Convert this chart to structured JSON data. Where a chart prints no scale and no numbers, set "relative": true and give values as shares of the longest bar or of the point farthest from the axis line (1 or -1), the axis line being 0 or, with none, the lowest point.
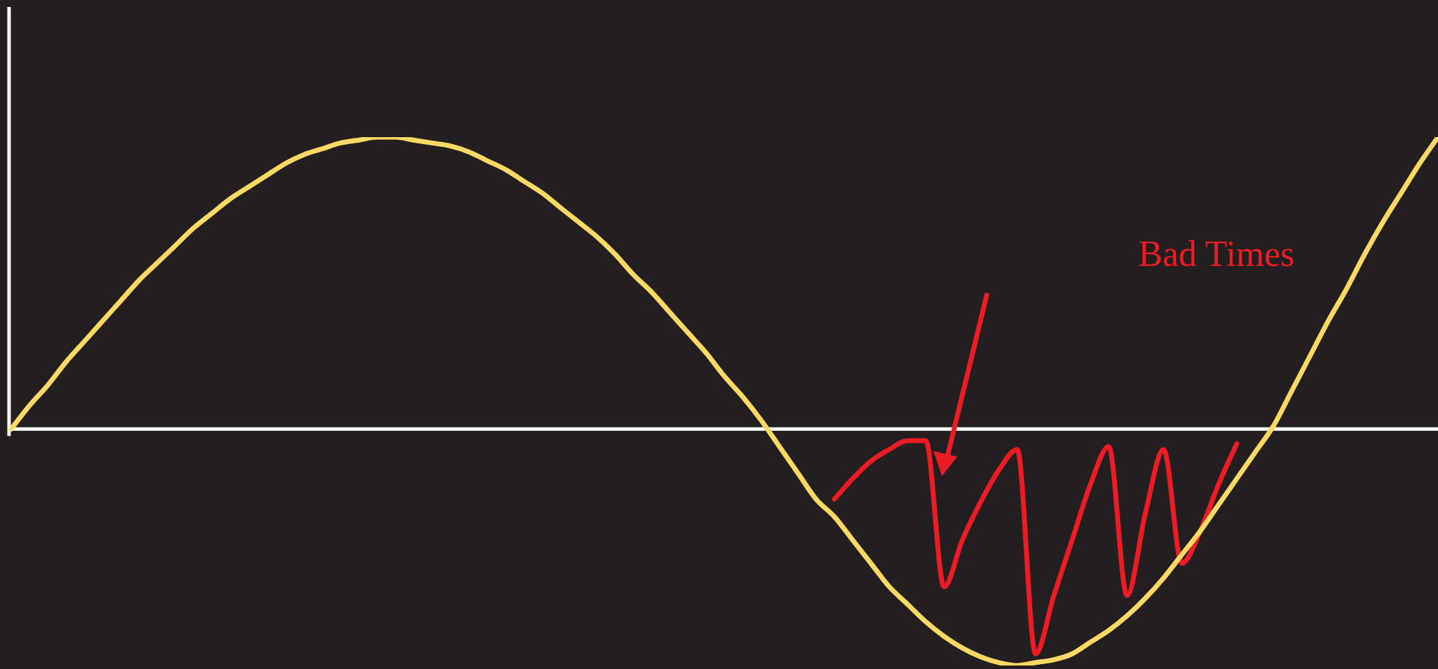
{
  "chart_data": {
    "type": "line",
    "relative": true,
    "legend": false,
    "marker": "none",
    "line_style": "solid",
    "annotations": [
      "Bad Times"
    ],
    "categories": [
      null,
      null,
      null,
      null,
      null,
      null,
      null,
      null,
      null,
      null,
      null,
      null,
      null,
      null,
      null,
      null,
      null,
      null,
      null,
      null,
      null,
      null,
      null,
      null,
      null,
      null,
      null,
      null,
      null,
      null,
      null,
      null,
      null,
      null,
      null,
      null,
      null,
      null,
      null,
      null,
      null,
      null,
      null,
      null,
      null,
      null,
      null,
      null,
      null,
      null,
      null,
      null,
      null,
      null,
      null,
      null,
      null,
      null,
      null,
      null,
      null,
      null,
      null,
      null,
      null,
      null,
      null,
      null,
      null,
      null,
      null,
      null,
      null,
      null,
      null,
      null,
      null,
      null,
      null
    ],
    "series": [
      {
        "color": "#fdd863",
        "values": [
          0,
          0.08,
          0.15,
          0.23,
          0.3,
          0.37,
          0.44,
          0.51,
          0.57,
          0.63,
          0.69,
          0.74,
          0.79,
          0.83,
          0.87,
          0.91,
          0.94,
          0.96,
          0.98,
          0.99,
          1,
          1,
          0.99,
          0.98,
          0.97,
          0.95,
          0.92,
          0.89,
          0.85,
          0.81,
          0.76,
          0.71,
          0.66,
          0.6,
          0.53,
          0.47,
          0.4,
          0.33,
          0.26,
          0.18,
          0.11,
          0.03,
          -0.06,
          -0.15,
          -0.24,
          -0.3,
          -0.38,
          -0.46,
          -0.54,
          -0.6,
          -0.66,
          -0.71,
          -0.75,
          -0.78,
          -0.8,
          -0.81,
          -0.8,
          -0.79,
          -0.77,
          -0.73,
          -0.69,
          -0.64,
          -0.58,
          -0.51,
          -0.43,
          -0.35,
          -0.26,
          -0.17,
          -0.08,
          0.01,
          0.13,
          0.25,
          0.37,
          0.48,
          0.6,
          0.71,
          0.81,
          0.91,
          1
        ]
      },
      {
        "color": "#ed1c24",
        "values": [
          null,
          null,
          null,
          null,
          null,
          null,
          null,
          null,
          null,
          null,
          null,
          null,
          null,
          null,
          null,
          null,
          null,
          null,
          null,
          null,
          null,
          null,
          null,
          null,
          null,
          null,
          null,
          null,
          null,
          null,
          null,
          null,
          null,
          null,
          null,
          null,
          null,
          null,
          null,
          null,
          null,
          null,
          null,
          null,
          null,
          -0.24,
          -0.17,
          -0.11,
          -0.07,
          -0.04,
          -0.04,
          -0.54,
          -0.38,
          -0.25,
          -0.14,
          -0.07,
          -0.77,
          -0.57,
          -0.38,
          -0.19,
          -0.06,
          -0.57,
          -0.29,
          -0.07,
          -0.46,
          -0.35,
          -0.19,
          -0.05,
          null,
          null,
          null,
          null,
          null,
          null,
          null,
          null,
          null,
          null,
          null
        ]
      }
    ]
  }
}
